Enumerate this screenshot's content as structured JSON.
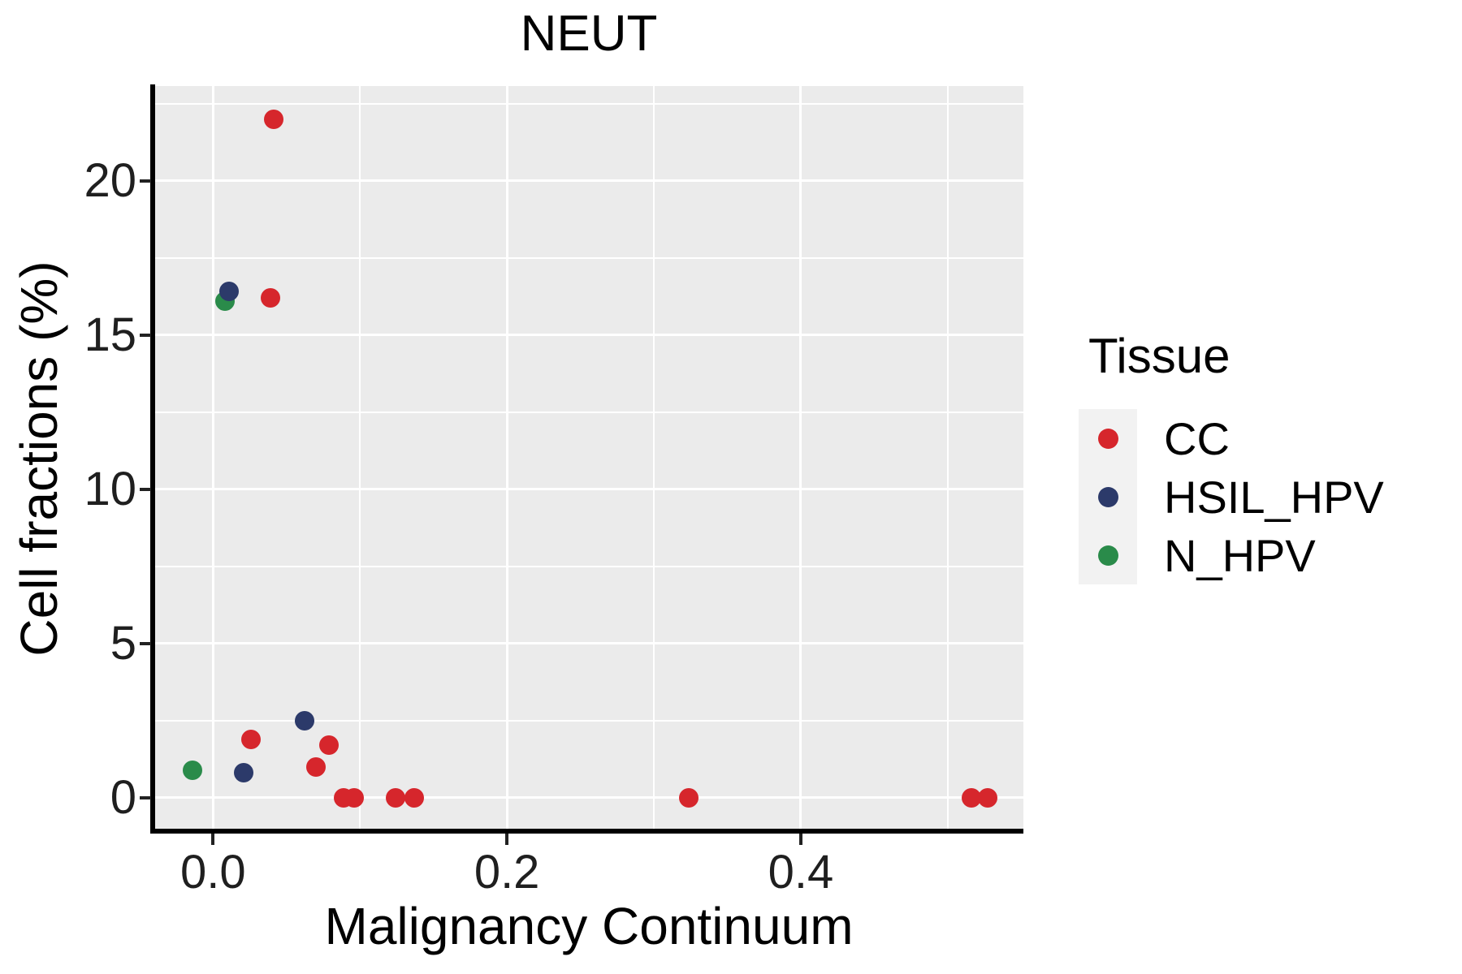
{
  "chart_data": {
    "type": "scatter",
    "title": "NEUT",
    "xlabel": "Malignancy Continuum",
    "ylabel": "Cell fractions (%)",
    "xlim": [
      -0.04,
      0.5515
    ],
    "ylim": [
      -1.06,
      23.07
    ],
    "x_ticks": {
      "values": [
        0.0,
        0.2,
        0.4
      ],
      "labels": [
        "0.0",
        "0.2",
        "0.4"
      ]
    },
    "y_ticks": {
      "values": [
        0,
        5,
        10,
        15,
        20
      ],
      "labels": [
        "0",
        "5",
        "10",
        "15",
        "20"
      ]
    },
    "x_minor_gridlines": [
      0.1,
      0.3,
      0.5
    ],
    "y_minor_gridlines": [
      2.5,
      7.5,
      12.5,
      17.5,
      22.5
    ],
    "grid": "on",
    "legend": {
      "title": "Tissue",
      "position": "right",
      "items": [
        {
          "label": "CC",
          "color": "#D6262C"
        },
        {
          "label": "HSIL_HPV",
          "color": "#2C3A6A"
        },
        {
          "label": "N_HPV",
          "color": "#2A8B4A"
        }
      ]
    },
    "colors": {
      "panel_background": "#EBEBEB",
      "gridline": "#FFFFFF",
      "axis_line": "#000000",
      "tick_label": "#1F1F1F",
      "legend_key_background": "#F2F2F2"
    },
    "series": [
      {
        "name": "CC",
        "color": "#D6262C",
        "points": [
          [
            0.041,
            22.0
          ],
          [
            0.039,
            16.2
          ],
          [
            0.026,
            1.9
          ],
          [
            0.07,
            1.0
          ],
          [
            0.079,
            1.7
          ],
          [
            0.089,
            0.0
          ],
          [
            0.096,
            0.0
          ],
          [
            0.124,
            0.0
          ],
          [
            0.137,
            0.0
          ],
          [
            0.324,
            0.0
          ],
          [
            0.516,
            0.0
          ],
          [
            0.527,
            0.0
          ]
        ]
      },
      {
        "name": "HSIL_HPV",
        "color": "#2C3A6A",
        "points": [
          [
            0.011,
            16.4
          ],
          [
            0.021,
            0.8
          ],
          [
            0.062,
            2.5
          ]
        ]
      },
      {
        "name": "N_HPV",
        "color": "#2A8B4A",
        "points": [
          [
            0.008,
            16.1
          ],
          [
            -0.014,
            0.9
          ]
        ]
      }
    ]
  }
}
